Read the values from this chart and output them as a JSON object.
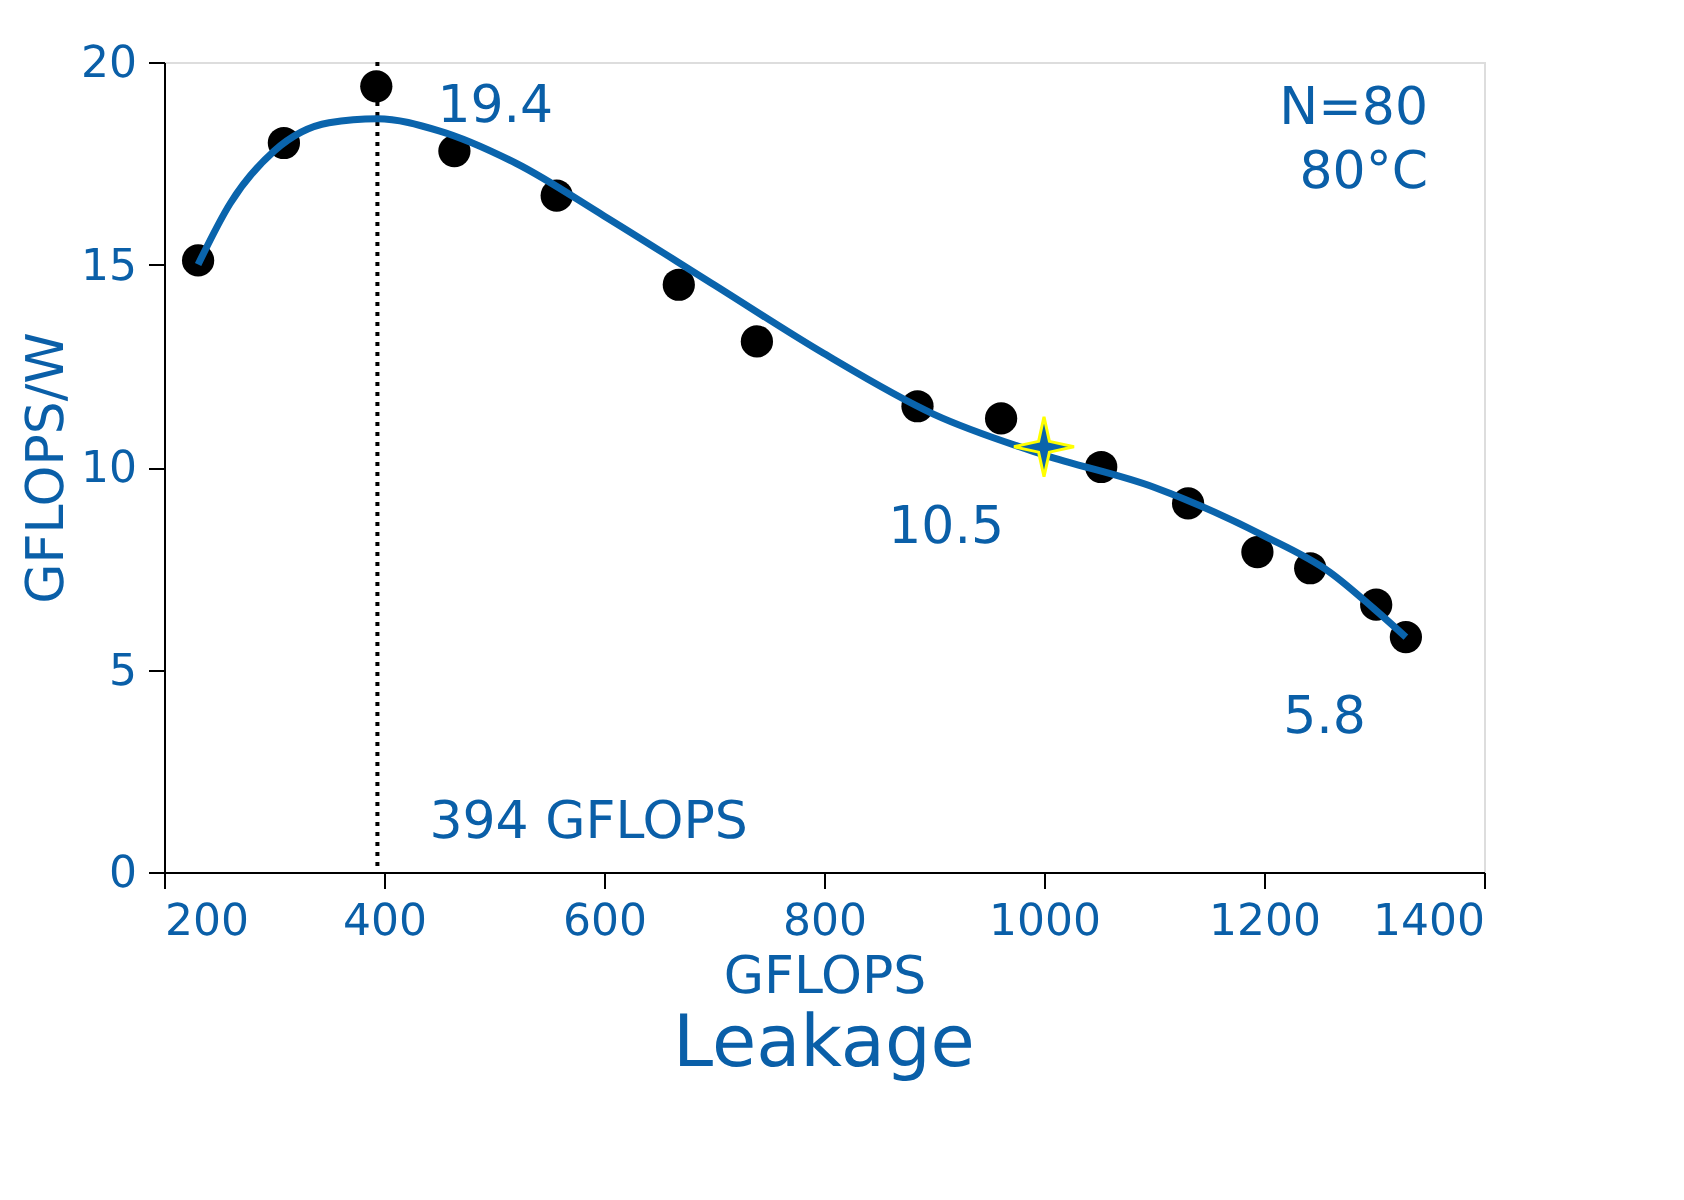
{
  "chart_data": {
    "type": "scatter",
    "xlabel": "GFLOPS",
    "ylabel": "GFLOPS/W",
    "xlim": [
      200,
      1400
    ],
    "xticks": [
      200,
      400,
      600,
      800,
      1000,
      1200,
      1400
    ],
    "ylim": [
      0,
      20
    ],
    "yticks": [
      0,
      5,
      10,
      15,
      20
    ],
    "grid": false,
    "series": [
      {
        "marker": "circle",
        "color": "#000000",
        "x": [
          231,
          309,
          393,
          464,
          557,
          668,
          739,
          885,
          961,
          1052,
          1131,
          1194,
          1242,
          1302,
          1329
        ],
        "values": [
          15.1,
          18.0,
          19.4,
          17.8,
          16.7,
          14.5,
          13.1,
          11.5,
          11.2,
          10.0,
          9.1,
          7.9,
          7.5,
          6.6,
          5.8
        ]
      },
      {
        "type": "line",
        "marker": "none",
        "line_style": "solid",
        "color": "#0a64ac",
        "x": [
          231,
          260,
          300,
          350,
          394,
          450,
          520,
          600,
          700,
          800,
          900,
          1000,
          1100,
          1200,
          1260,
          1300,
          1329
        ],
        "values": [
          15.0,
          16.5,
          17.8,
          18.5,
          18.6,
          18.3,
          17.5,
          16.2,
          14.5,
          12.8,
          11.3,
          10.3,
          9.5,
          8.3,
          7.4,
          6.5,
          5.8
        ]
      },
      {
        "marker": "star",
        "color": "#0a64ac",
        "x": [
          1000
        ],
        "values": [
          10.5
        ]
      }
    ],
    "ref_lines": [
      {
        "axis": "x",
        "value": 394,
        "label": "394 GFLOPS",
        "color": "#000000",
        "line_style": "dotted"
      }
    ],
    "annotations": [
      {
        "text": "19.4",
        "x": 394,
        "y": 19.4
      },
      {
        "text": "10.5",
        "x": 1000,
        "y": 10.5
      },
      {
        "text": "5.8",
        "x": 1329,
        "y": 5.8
      },
      "N=80",
      "80°C",
      "Leakage"
    ]
  }
}
